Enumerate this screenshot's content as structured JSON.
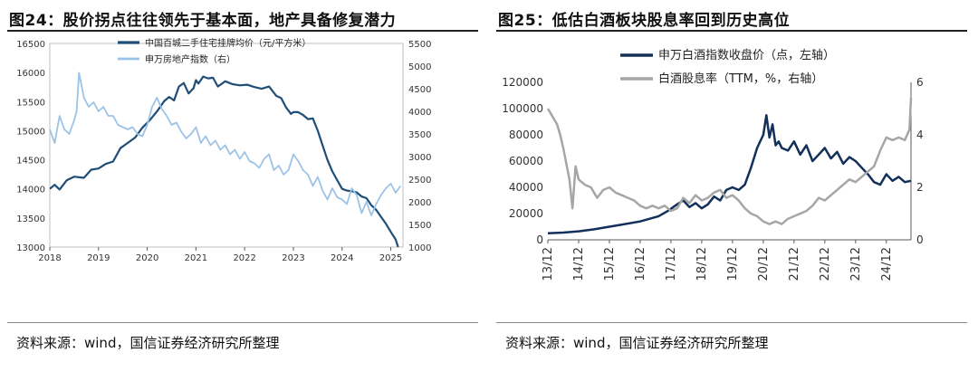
{
  "chart_data": [
    {
      "type": "line",
      "title": "图24：股价拐点往往领先于基本面，地产具备修复潜力",
      "source": "资料来源：wind，国信证券经济研究所整理",
      "x_ticks": [
        "2018",
        "2019",
        "2020",
        "2021",
        "2022",
        "2023",
        "2024",
        "2025"
      ],
      "x_range": [
        2018.0,
        2025.25
      ],
      "left_axis": {
        "range": [
          13000,
          16500
        ],
        "ticks": [
          "13000",
          "13500",
          "14000",
          "14500",
          "15000",
          "15500",
          "16000",
          "16500"
        ]
      },
      "right_axis": {
        "range": [
          1000,
          5500
        ],
        "ticks": [
          "1000",
          "1500",
          "2000",
          "2500",
          "3000",
          "3500",
          "4000",
          "4500",
          "5000",
          "5500"
        ]
      },
      "series": [
        {
          "name": "中国百城二手住宅挂牌均价（元/平方米）",
          "axis": "left",
          "color": "#1f4e79",
          "x": [
            2018.0,
            2018.1,
            2018.2,
            2018.35,
            2018.5,
            2018.7,
            2018.85,
            2019.0,
            2019.15,
            2019.3,
            2019.45,
            2019.6,
            2019.75,
            2019.9,
            2020.05,
            2020.2,
            2020.35,
            2020.45,
            2020.55,
            2020.65,
            2020.75,
            2020.85,
            2020.95,
            2021.0,
            2021.05,
            2021.15,
            2021.25,
            2021.35,
            2021.45,
            2021.6,
            2021.75,
            2021.9,
            2022.05,
            2022.2,
            2022.35,
            2022.5,
            2022.65,
            2022.75,
            2022.85,
            2022.95,
            2023.0,
            2023.1,
            2023.2,
            2023.3,
            2023.4,
            2023.5,
            2023.6,
            2023.7,
            2023.8,
            2023.9,
            2024.0,
            2024.1,
            2024.2,
            2024.3,
            2024.4,
            2024.5,
            2024.6,
            2024.7,
            2024.8,
            2024.9,
            2025.0,
            2025.1,
            2025.15
          ],
          "values": [
            14000,
            14070,
            13990,
            14150,
            14210,
            14190,
            14330,
            14350,
            14430,
            14470,
            14700,
            14790,
            14880,
            15050,
            15180,
            15330,
            15510,
            15580,
            15520,
            15760,
            15820,
            15640,
            15730,
            15870,
            15810,
            15930,
            15900,
            15910,
            15760,
            15850,
            15800,
            15780,
            15790,
            15750,
            15720,
            15760,
            15600,
            15560,
            15400,
            15290,
            15320,
            15320,
            15270,
            15200,
            15210,
            15000,
            14750,
            14500,
            14300,
            14150,
            14000,
            13970,
            13960,
            13940,
            13870,
            13840,
            13720,
            13640,
            13520,
            13400,
            13260,
            13130,
            13000
          ]
        },
        {
          "name": "申万房地产指数（右）",
          "axis": "right",
          "color": "#9cc3e6",
          "x": [
            2018.0,
            2018.1,
            2018.2,
            2018.3,
            2018.4,
            2018.5,
            2018.55,
            2018.6,
            2018.7,
            2018.8,
            2018.9,
            2019.0,
            2019.1,
            2019.2,
            2019.3,
            2019.4,
            2019.5,
            2019.6,
            2019.7,
            2019.8,
            2019.9,
            2020.0,
            2020.1,
            2020.2,
            2020.3,
            2020.4,
            2020.5,
            2020.6,
            2020.7,
            2020.8,
            2020.9,
            2021.0,
            2021.1,
            2021.2,
            2021.3,
            2021.4,
            2021.5,
            2021.6,
            2021.7,
            2021.8,
            2021.9,
            2022.0,
            2022.1,
            2022.2,
            2022.3,
            2022.4,
            2022.5,
            2022.6,
            2022.7,
            2022.8,
            2022.9,
            2023.0,
            2023.1,
            2023.2,
            2023.3,
            2023.4,
            2023.5,
            2023.6,
            2023.7,
            2023.8,
            2023.9,
            2024.0,
            2024.1,
            2024.2,
            2024.3,
            2024.4,
            2024.5,
            2024.6,
            2024.7,
            2024.8,
            2024.9,
            2025.0,
            2025.1,
            2025.2
          ],
          "values": [
            3600,
            3300,
            3900,
            3600,
            3500,
            3800,
            4000,
            4850,
            4300,
            4100,
            4200,
            4000,
            4100,
            3900,
            3900,
            3700,
            3650,
            3600,
            3650,
            3500,
            3450,
            3700,
            4100,
            4300,
            4050,
            3900,
            3700,
            3750,
            3550,
            3400,
            3500,
            3650,
            3300,
            3450,
            3250,
            3350,
            3150,
            3250,
            3050,
            3150,
            2950,
            3100,
            2900,
            2850,
            2750,
            2950,
            3050,
            2700,
            2800,
            2600,
            2700,
            3050,
            2900,
            2700,
            2600,
            2350,
            2550,
            2250,
            2050,
            2300,
            2100,
            2050,
            1950,
            2300,
            2150,
            1750,
            2000,
            1700,
            1950,
            2150,
            2300,
            2400,
            2200,
            2350
          ]
        }
      ]
    },
    {
      "type": "line",
      "title": "图25：低估白酒板块股息率回到历史高位",
      "source": "资料来源：wind，国信证券经济研究所整理",
      "x_ticks": [
        "13/12",
        "14/12",
        "15/12",
        "16/12",
        "17/12",
        "18/12",
        "19/12",
        "20/12",
        "21/12",
        "22/12",
        "23/12",
        "24/12"
      ],
      "x_range": [
        0,
        11.8
      ],
      "left_axis": {
        "range": [
          0,
          120000
        ],
        "ticks": [
          "0",
          "20000",
          "40000",
          "60000",
          "80000",
          "100000",
          "120000"
        ]
      },
      "right_axis": {
        "range": [
          0,
          6
        ],
        "ticks": [
          "0",
          "2",
          "4",
          "6"
        ]
      },
      "series": [
        {
          "name": "申万白酒指数收盘价（点，左轴）",
          "axis": "left",
          "color": "#12305a",
          "x": [
            0,
            0.5,
            1.0,
            1.5,
            2.0,
            2.5,
            3.0,
            3.3,
            3.6,
            3.9,
            4.2,
            4.4,
            4.6,
            4.8,
            5.0,
            5.2,
            5.4,
            5.6,
            5.8,
            6.0,
            6.2,
            6.4,
            6.6,
            6.8,
            7.0,
            7.1,
            7.2,
            7.3,
            7.4,
            7.5,
            7.6,
            7.8,
            8.0,
            8.2,
            8.4,
            8.6,
            8.8,
            9.0,
            9.2,
            9.4,
            9.6,
            9.8,
            10.0,
            10.2,
            10.4,
            10.6,
            10.8,
            11.0,
            11.2,
            11.4,
            11.6,
            11.8
          ],
          "values": [
            5000,
            5500,
            6500,
            8000,
            10000,
            12000,
            14000,
            16000,
            18000,
            22000,
            27000,
            30000,
            25000,
            28000,
            24000,
            27000,
            33000,
            30000,
            38000,
            40000,
            38000,
            42000,
            55000,
            70000,
            80000,
            95000,
            78000,
            88000,
            72000,
            75000,
            70000,
            68000,
            75000,
            65000,
            72000,
            60000,
            65000,
            70000,
            62000,
            67000,
            58000,
            63000,
            60000,
            55000,
            50000,
            44000,
            42000,
            50000,
            45000,
            48000,
            44000,
            45000
          ]
        },
        {
          "name": "白酒股息率（TTM，%，右轴）",
          "axis": "right",
          "color": "#a6a6a6",
          "x": [
            0,
            0.1,
            0.2,
            0.3,
            0.4,
            0.5,
            0.6,
            0.7,
            0.8,
            0.9,
            1.0,
            1.2,
            1.4,
            1.6,
            1.8,
            2.0,
            2.2,
            2.4,
            2.6,
            2.8,
            3.0,
            3.2,
            3.4,
            3.6,
            3.8,
            4.0,
            4.2,
            4.4,
            4.6,
            4.8,
            5.0,
            5.2,
            5.4,
            5.6,
            5.8,
            6.0,
            6.2,
            6.4,
            6.6,
            6.8,
            7.0,
            7.2,
            7.4,
            7.6,
            7.8,
            8.0,
            8.2,
            8.4,
            8.6,
            8.8,
            9.0,
            9.2,
            9.4,
            9.6,
            9.8,
            10.0,
            10.2,
            10.4,
            10.6,
            10.8,
            11.0,
            11.2,
            11.4,
            11.6,
            11.75,
            11.8
          ],
          "values": [
            5.0,
            4.8,
            4.6,
            4.4,
            4.0,
            3.5,
            2.9,
            2.3,
            1.2,
            2.8,
            2.3,
            2.1,
            2.0,
            1.6,
            1.9,
            2.0,
            1.8,
            1.7,
            1.6,
            1.5,
            1.3,
            1.2,
            1.3,
            1.2,
            1.3,
            1.1,
            1.2,
            1.6,
            1.4,
            1.7,
            1.5,
            1.6,
            1.8,
            1.9,
            1.6,
            1.7,
            1.5,
            1.2,
            1.0,
            0.9,
            0.7,
            0.6,
            0.7,
            0.6,
            0.8,
            0.9,
            1.0,
            1.1,
            1.3,
            1.6,
            1.5,
            1.7,
            1.9,
            2.1,
            2.3,
            2.2,
            2.4,
            2.6,
            2.8,
            3.4,
            3.9,
            3.8,
            3.9,
            3.8,
            4.2,
            5.4
          ]
        }
      ]
    }
  ]
}
